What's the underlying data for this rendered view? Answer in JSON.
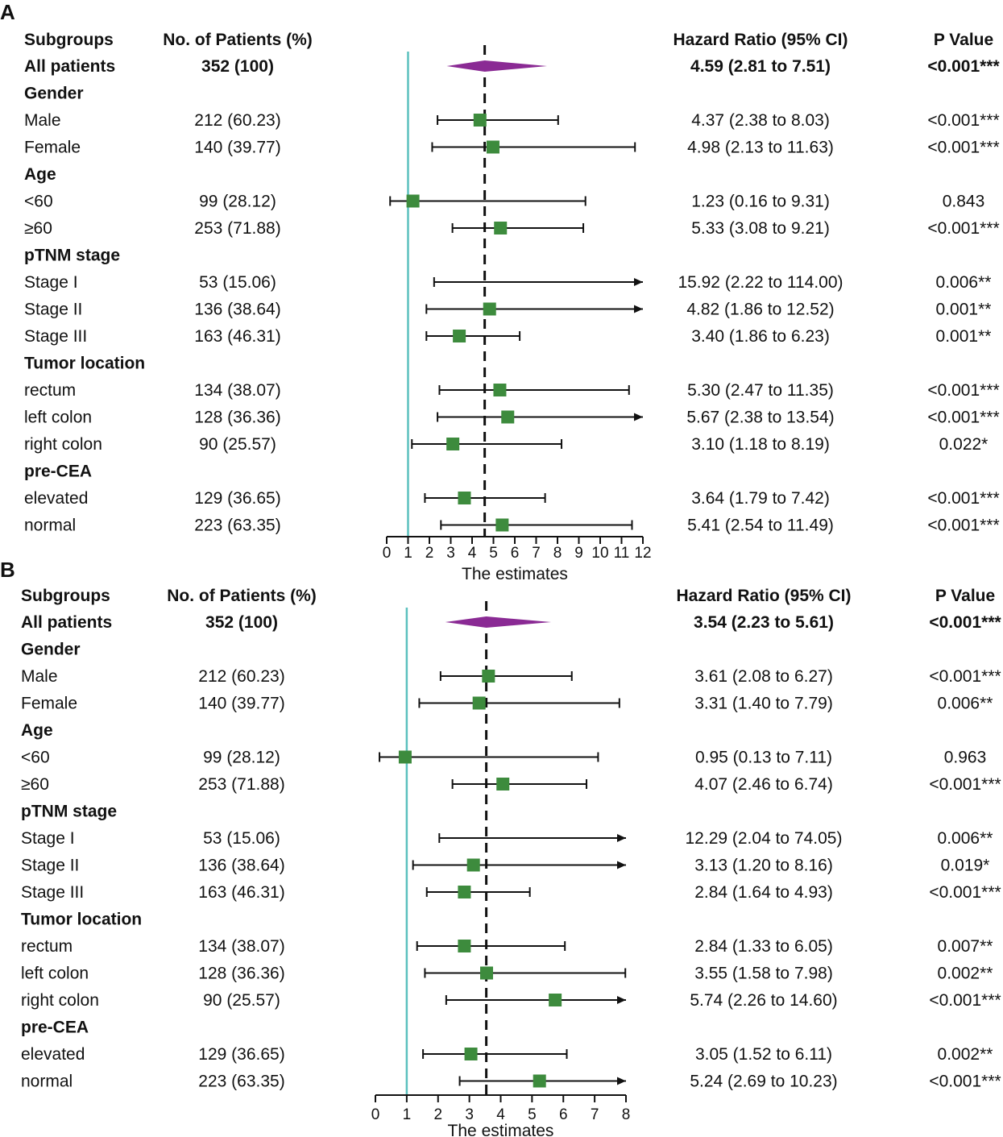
{
  "chart_data": [
    {
      "type": "forest",
      "panel": "A",
      "headers": {
        "subgroups": "Subgroups",
        "patients": "No. of Patients (%)",
        "hr": "Hazard Ratio (95% CI)",
        "p": "P Value"
      },
      "xlabel": "The estimates",
      "xlim": [
        0,
        12
      ],
      "ticks": [
        "0",
        "1",
        "2",
        "3",
        "4",
        "5",
        "6",
        "7",
        "8",
        "9",
        "10",
        "11",
        "12"
      ],
      "reference_line": 1,
      "summary_line": 4.59,
      "rows": [
        {
          "kind": "overall",
          "label": "All patients",
          "patients": "352 (100)",
          "hr": 4.59,
          "lo": 2.81,
          "hi": 7.51,
          "hr_text": "4.59 (2.81 to 7.51)",
          "p": "<0.001***"
        },
        {
          "kind": "header",
          "label": "Gender"
        },
        {
          "kind": "row",
          "label": "Male",
          "patients": "212 (60.23)",
          "hr": 4.37,
          "lo": 2.38,
          "hi": 8.03,
          "hr_text": "4.37 (2.38 to 8.03)",
          "p": "<0.001***"
        },
        {
          "kind": "row",
          "label": "Female",
          "patients": "140 (39.77)",
          "hr": 4.98,
          "lo": 2.13,
          "hi": 11.63,
          "hr_text": "4.98 (2.13 to 11.63)",
          "p": "<0.001***"
        },
        {
          "kind": "header",
          "label": "Age"
        },
        {
          "kind": "row",
          "label": "<60",
          "patients": "99 (28.12)",
          "hr": 1.23,
          "lo": 0.16,
          "hi": 9.31,
          "hr_text": "1.23 (0.16 to 9.31)",
          "p": "0.843"
        },
        {
          "kind": "row",
          "label": "≥60",
          "patients": "253 (71.88)",
          "hr": 5.33,
          "lo": 3.08,
          "hi": 9.21,
          "hr_text": "5.33 (3.08 to 9.21)",
          "p": "<0.001***"
        },
        {
          "kind": "header",
          "label": "pTNM stage"
        },
        {
          "kind": "row",
          "label": "Stage I",
          "patients": "53 (15.06)",
          "hr": 15.92,
          "lo": 2.22,
          "hi": 114.0,
          "hr_text": "15.92 (2.22 to 114.00)",
          "p": "0.006**"
        },
        {
          "kind": "row",
          "label": "Stage II",
          "patients": "136 (38.64)",
          "hr": 4.82,
          "lo": 1.86,
          "hi": 12.52,
          "hr_text": "4.82 (1.86 to 12.52)",
          "p": "0.001**"
        },
        {
          "kind": "row",
          "label": "Stage III",
          "patients": "163 (46.31)",
          "hr": 3.4,
          "lo": 1.86,
          "hi": 6.23,
          "hr_text": "3.40 (1.86 to 6.23)",
          "p": "0.001**"
        },
        {
          "kind": "header",
          "label": "Tumor location"
        },
        {
          "kind": "row",
          "label": "rectum",
          "patients": "134 (38.07)",
          "hr": 5.3,
          "lo": 2.47,
          "hi": 11.35,
          "hr_text": "5.30 (2.47 to 11.35)",
          "p": "<0.001***"
        },
        {
          "kind": "row",
          "label": "left colon",
          "patients": "128 (36.36)",
          "hr": 5.67,
          "lo": 2.38,
          "hi": 13.54,
          "hr_text": "5.67 (2.38 to 13.54)",
          "p": "<0.001***"
        },
        {
          "kind": "row",
          "label": "right colon",
          "patients": "90 (25.57)",
          "hr": 3.1,
          "lo": 1.18,
          "hi": 8.19,
          "hr_text": "3.10 (1.18 to 8.19)",
          "p": "0.022*"
        },
        {
          "kind": "header",
          "label": "pre-CEA"
        },
        {
          "kind": "row",
          "label": "elevated",
          "patients": "129 (36.65)",
          "hr": 3.64,
          "lo": 1.79,
          "hi": 7.42,
          "hr_text": "3.64 (1.79 to 7.42)",
          "p": "<0.001***"
        },
        {
          "kind": "row",
          "label": "normal",
          "patients": "223 (63.35)",
          "hr": 5.41,
          "lo": 2.54,
          "hi": 11.49,
          "hr_text": "5.41 (2.54 to 11.49)",
          "p": "<0.001***"
        }
      ]
    },
    {
      "type": "forest",
      "panel": "B",
      "headers": {
        "subgroups": "Subgroups",
        "patients": "No. of Patients (%)",
        "hr": "Hazard Ratio (95% CI)",
        "p": "P Value"
      },
      "xlabel": "The estimates",
      "xlim": [
        0,
        8
      ],
      "ticks": [
        "0",
        "1",
        "2",
        "3",
        "4",
        "5",
        "6",
        "7",
        "8"
      ],
      "reference_line": 1,
      "summary_line": 3.54,
      "rows": [
        {
          "kind": "overall",
          "label": "All patients",
          "patients": "352 (100)",
          "hr": 3.54,
          "lo": 2.23,
          "hi": 5.61,
          "hr_text": "3.54 (2.23 to  5.61)",
          "p": "<0.001***"
        },
        {
          "kind": "header",
          "label": "Gender"
        },
        {
          "kind": "row",
          "label": "Male",
          "patients": "212 (60.23)",
          "hr": 3.61,
          "lo": 2.08,
          "hi": 6.27,
          "hr_text": "3.61 (2.08 to  6.27)",
          "p": "<0.001***"
        },
        {
          "kind": "row",
          "label": "Female",
          "patients": "140 (39.77)",
          "hr": 3.31,
          "lo": 1.4,
          "hi": 7.79,
          "hr_text": "3.31 (1.40 to  7.79)",
          "p": "0.006**"
        },
        {
          "kind": "header",
          "label": "Age"
        },
        {
          "kind": "row",
          "label": "<60",
          "patients": "99 (28.12)",
          "hr": 0.95,
          "lo": 0.13,
          "hi": 7.11,
          "hr_text": "0.95 (0.13 to  7.11)",
          "p": "0.963"
        },
        {
          "kind": "row",
          "label": "≥60",
          "patients": "253 (71.88)",
          "hr": 4.07,
          "lo": 2.46,
          "hi": 6.74,
          "hr_text": "4.07 (2.46 to  6.74)",
          "p": "<0.001***"
        },
        {
          "kind": "header",
          "label": "pTNM stage"
        },
        {
          "kind": "row",
          "label": "Stage I",
          "patients": "53 (15.06)",
          "hr": 12.29,
          "lo": 2.04,
          "hi": 74.05,
          "hr_text": "12.29 (2.04 to 74.05)",
          "p": "0.006**"
        },
        {
          "kind": "row",
          "label": "Stage II",
          "patients": "136 (38.64)",
          "hr": 3.13,
          "lo": 1.2,
          "hi": 8.16,
          "hr_text": "3.13 (1.20 to  8.16)",
          "p": "0.019*"
        },
        {
          "kind": "row",
          "label": "Stage III",
          "patients": "163 (46.31)",
          "hr": 2.84,
          "lo": 1.64,
          "hi": 4.93,
          "hr_text": "2.84 (1.64 to  4.93)",
          "p": "<0.001***"
        },
        {
          "kind": "header",
          "label": "Tumor location"
        },
        {
          "kind": "row",
          "label": "rectum",
          "patients": "134 (38.07)",
          "hr": 2.84,
          "lo": 1.33,
          "hi": 6.05,
          "hr_text": "2.84 (1.33 to  6.05)",
          "p": "0.007**"
        },
        {
          "kind": "row",
          "label": "left colon",
          "patients": "128 (36.36)",
          "hr": 3.55,
          "lo": 1.58,
          "hi": 7.98,
          "hr_text": "3.55 (1.58 to  7.98)",
          "p": "0.002**"
        },
        {
          "kind": "row",
          "label": "right colon",
          "patients": "90 (25.57)",
          "hr": 5.74,
          "lo": 2.26,
          "hi": 14.6,
          "hr_text": "5.74 (2.26 to 14.60)",
          "p": "<0.001***"
        },
        {
          "kind": "header",
          "label": "pre-CEA"
        },
        {
          "kind": "row",
          "label": "elevated",
          "patients": "129 (36.65)",
          "hr": 3.05,
          "lo": 1.52,
          "hi": 6.11,
          "hr_text": "3.05 (1.52 to  6.11)",
          "p": "0.002**"
        },
        {
          "kind": "row",
          "label": "normal",
          "patients": "223 (63.35)",
          "hr": 5.24,
          "lo": 2.69,
          "hi": 10.23,
          "hr_text": "5.24 (2.69 to 10.23)",
          "p": "<0.001***"
        }
      ]
    }
  ],
  "colors": {
    "marker": "#3d8b3d",
    "diamond": "#8a2a94",
    "reference": "#5bc0be",
    "ink": "#111111"
  }
}
